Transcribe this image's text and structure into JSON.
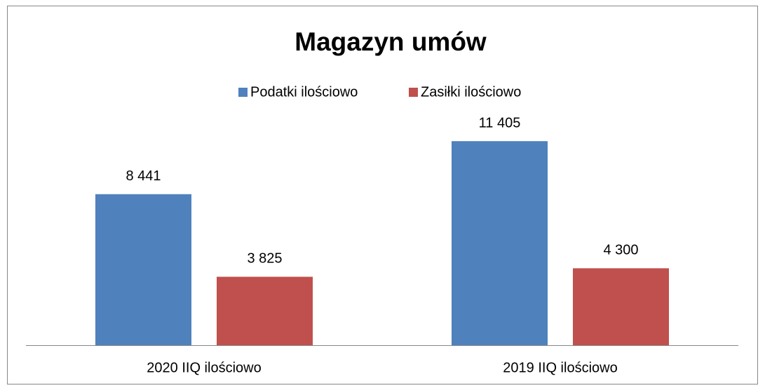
{
  "chart_data": {
    "type": "bar",
    "title": "Magazyn umów",
    "categories": [
      "2020 IIQ ilościowo",
      "2019 IIQ ilościowo"
    ],
    "series": [
      {
        "name": "Podatki ilościowo",
        "color": "#4f81bd",
        "values": [
          8441,
          11405
        ],
        "value_labels": [
          "8 441",
          "11 405"
        ]
      },
      {
        "name": "Zasiłki ilościowo",
        "color": "#c0504d",
        "values": [
          3825,
          4300
        ],
        "value_labels": [
          "3 825",
          "4 300"
        ]
      }
    ],
    "ylim": [
      0,
      14000
    ],
    "legend": "top"
  }
}
